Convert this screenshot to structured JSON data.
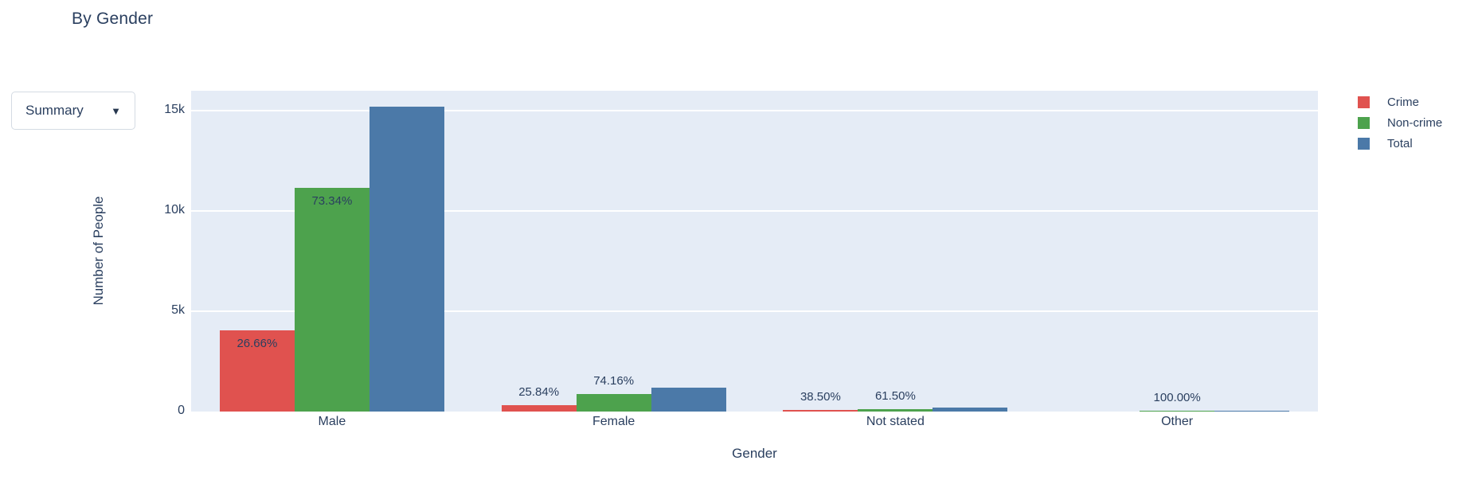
{
  "page": {
    "title": "By Gender"
  },
  "controls": {
    "summary_dropdown": {
      "label": "Summary",
      "caret": "▼"
    }
  },
  "chart_data": {
    "type": "bar",
    "title": "By Gender",
    "xlabel": "Gender",
    "ylabel": "Number of People",
    "categories": [
      "Male",
      "Female",
      "Not stated",
      "Other"
    ],
    "series": [
      {
        "name": "Crime",
        "color": "#e0524f",
        "values": [
          4052,
          310,
          77,
          0
        ],
        "labels": [
          "26.66%",
          "25.84%",
          "38.50%",
          ""
        ]
      },
      {
        "name": "Non-crime",
        "color": "#4da24d",
        "values": [
          11148,
          890,
          123,
          2
        ],
        "labels": [
          "73.34%",
          "74.16%",
          "61.50%",
          "100.00%"
        ]
      },
      {
        "name": "Total",
        "color": "#4b79a8",
        "values": [
          15200,
          1200,
          200,
          2
        ],
        "labels": [
          "",
          "",
          "",
          ""
        ]
      }
    ],
    "ylim": [
      0,
      16000
    ],
    "yticks": [
      {
        "value": 0,
        "label": "0"
      },
      {
        "value": 5000,
        "label": "5k"
      },
      {
        "value": 10000,
        "label": "10k"
      },
      {
        "value": 15000,
        "label": "15k"
      }
    ],
    "grid": true,
    "legend_position": "right-top",
    "plot_bg": "#e5ecf6",
    "text_color": "#2a3f5f"
  }
}
